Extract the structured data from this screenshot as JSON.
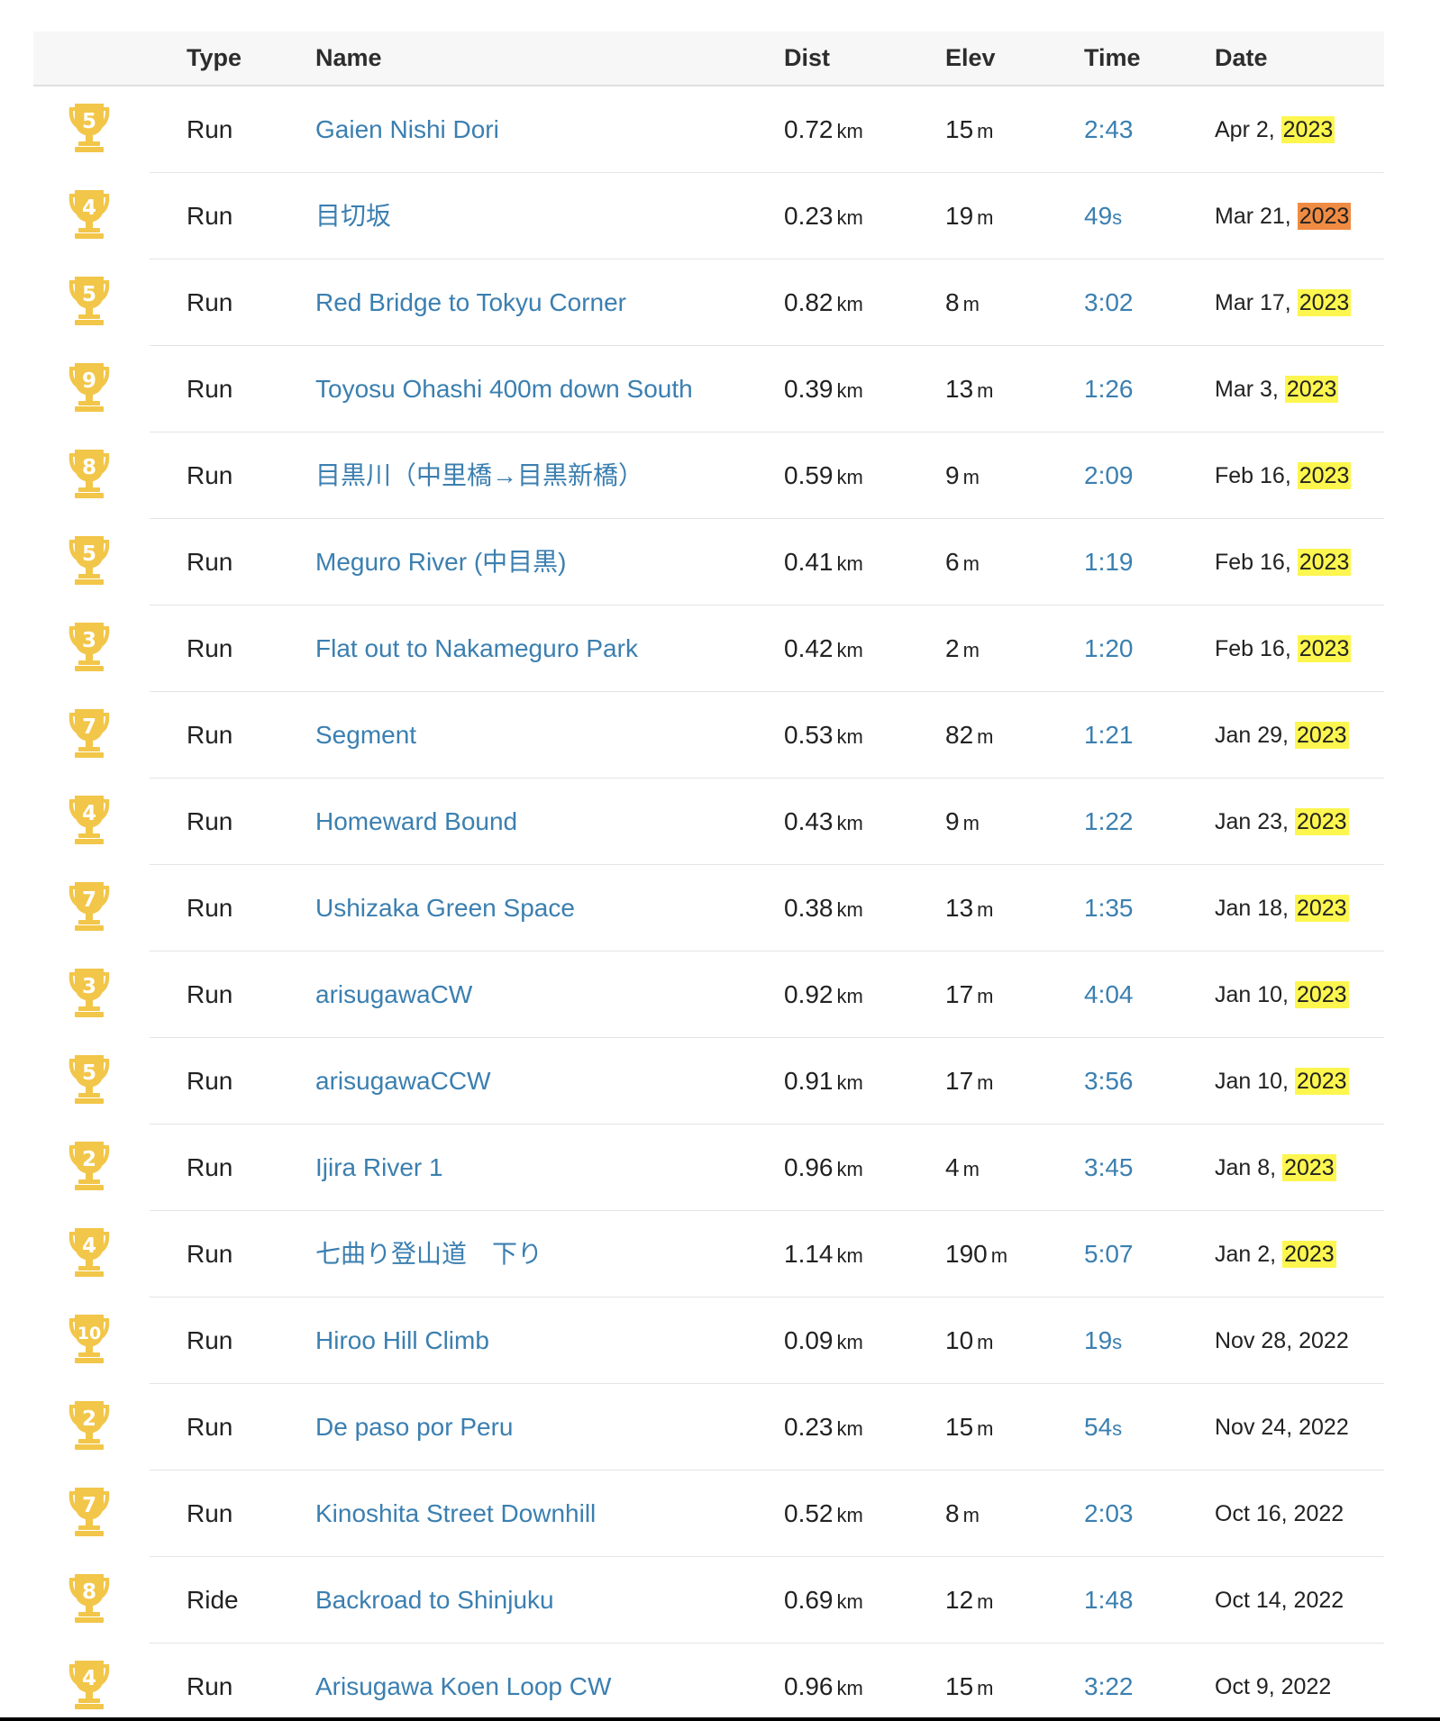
{
  "colors": {
    "link": "#3b7fb0",
    "trophy": "#f2c649",
    "highlight_yellow": "#fdf64f",
    "highlight_orange": "#ef8b43",
    "header_bg": "#f7f7f7"
  },
  "headers": {
    "type": "Type",
    "name": "Name",
    "dist": "Dist",
    "elev": "Elev",
    "time": "Time",
    "date": "Date"
  },
  "units": {
    "dist": "km",
    "elev": "m"
  },
  "rows": [
    {
      "rank": "5",
      "type": "Run",
      "name": "Gaien Nishi Dori",
      "dist": "0.72",
      "elev": "15",
      "time": "2:43",
      "date_prefix": "Apr 2,",
      "year": "2023",
      "highlight": "yellow"
    },
    {
      "rank": "4",
      "type": "Run",
      "name": "目切坂",
      "dist": "0.23",
      "elev": "19",
      "time": "49",
      "time_unit": "s",
      "date_prefix": "Mar 21,",
      "year": "2023",
      "highlight": "orange"
    },
    {
      "rank": "5",
      "type": "Run",
      "name": "Red Bridge to Tokyu Corner",
      "dist": "0.82",
      "elev": "8",
      "time": "3:02",
      "date_prefix": "Mar 17,",
      "year": "2023",
      "highlight": "yellow"
    },
    {
      "rank": "9",
      "type": "Run",
      "name": "Toyosu Ohashi 400m down South",
      "dist": "0.39",
      "elev": "13",
      "time": "1:26",
      "date_prefix": "Mar 3,",
      "year": "2023",
      "highlight": "yellow"
    },
    {
      "rank": "8",
      "type": "Run",
      "name": "目黒川（中里橋→目黒新橋）",
      "dist": "0.59",
      "elev": "9",
      "time": "2:09",
      "date_prefix": "Feb 16,",
      "year": "2023",
      "highlight": "yellow"
    },
    {
      "rank": "5",
      "type": "Run",
      "name": "Meguro River (中目黒)",
      "dist": "0.41",
      "elev": "6",
      "time": "1:19",
      "date_prefix": "Feb 16,",
      "year": "2023",
      "highlight": "yellow"
    },
    {
      "rank": "3",
      "type": "Run",
      "name": "Flat out to Nakameguro Park",
      "dist": "0.42",
      "elev": "2",
      "time": "1:20",
      "date_prefix": "Feb 16,",
      "year": "2023",
      "highlight": "yellow"
    },
    {
      "rank": "7",
      "type": "Run",
      "name": "Segment",
      "dist": "0.53",
      "elev": "82",
      "time": "1:21",
      "date_prefix": "Jan 29,",
      "year": "2023",
      "highlight": "yellow"
    },
    {
      "rank": "4",
      "type": "Run",
      "name": "Homeward Bound",
      "dist": "0.43",
      "elev": "9",
      "time": "1:22",
      "date_prefix": "Jan 23,",
      "year": "2023",
      "highlight": "yellow"
    },
    {
      "rank": "7",
      "type": "Run",
      "name": "Ushizaka Green Space",
      "dist": "0.38",
      "elev": "13",
      "time": "1:35",
      "date_prefix": "Jan 18,",
      "year": "2023",
      "highlight": "yellow"
    },
    {
      "rank": "3",
      "type": "Run",
      "name": "arisugawaCW",
      "dist": "0.92",
      "elev": "17",
      "time": "4:04",
      "date_prefix": "Jan 10,",
      "year": "2023",
      "highlight": "yellow"
    },
    {
      "rank": "5",
      "type": "Run",
      "name": "arisugawaCCW",
      "dist": "0.91",
      "elev": "17",
      "time": "3:56",
      "date_prefix": "Jan 10,",
      "year": "2023",
      "highlight": "yellow"
    },
    {
      "rank": "2",
      "type": "Run",
      "name": "Ijira River 1",
      "dist": "0.96",
      "elev": "4",
      "time": "3:45",
      "date_prefix": "Jan 8,",
      "year": "2023",
      "highlight": "yellow"
    },
    {
      "rank": "4",
      "type": "Run",
      "name": "七曲り登山道　下り",
      "dist": "1.14",
      "elev": "190",
      "time": "5:07",
      "date_prefix": "Jan 2,",
      "year": "2023",
      "highlight": "yellow"
    },
    {
      "rank": "10",
      "type": "Run",
      "name": "Hiroo Hill Climb",
      "dist": "0.09",
      "elev": "10",
      "time": "19",
      "time_unit": "s",
      "date_prefix": "Nov 28,",
      "year": "2022",
      "highlight": "none"
    },
    {
      "rank": "2",
      "type": "Run",
      "name": "De paso por Peru",
      "dist": "0.23",
      "elev": "15",
      "time": "54",
      "time_unit": "s",
      "date_prefix": "Nov 24,",
      "year": "2022",
      "highlight": "none"
    },
    {
      "rank": "7",
      "type": "Run",
      "name": "Kinoshita Street Downhill",
      "dist": "0.52",
      "elev": "8",
      "time": "2:03",
      "date_prefix": "Oct 16,",
      "year": "2022",
      "highlight": "none"
    },
    {
      "rank": "8",
      "type": "Ride",
      "name": "Backroad to Shinjuku",
      "dist": "0.69",
      "elev": "12",
      "time": "1:48",
      "date_prefix": "Oct 14,",
      "year": "2022",
      "highlight": "none"
    },
    {
      "rank": "4",
      "type": "Run",
      "name": "Arisugawa Koen Loop CW",
      "dist": "0.96",
      "elev": "15",
      "time": "3:22",
      "date_prefix": "Oct 9,",
      "year": "2022",
      "highlight": "none"
    }
  ]
}
